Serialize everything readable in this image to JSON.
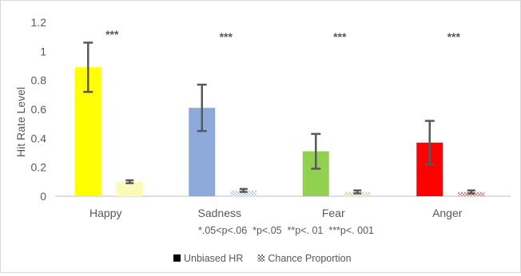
{
  "chart_data": {
    "type": "bar",
    "ylabel": "Hit Rate Level",
    "ylim": [
      0,
      1.2
    ],
    "yticks": [
      0,
      0.2,
      0.4,
      0.6,
      0.8,
      1,
      1.2
    ],
    "ytick_labels": [
      "0",
      "0.2",
      "0.4",
      "0.6",
      "0.8",
      "1",
      "1.2"
    ],
    "categories": [
      "Happy",
      "Sadness",
      "Fear",
      "Anger"
    ],
    "series": [
      {
        "name": "Unbiased HR",
        "values": [
          0.89,
          0.61,
          0.31,
          0.37
        ],
        "error": [
          0.17,
          0.16,
          0.12,
          0.15
        ]
      },
      {
        "name": "Chance Proportion",
        "values": [
          0.1,
          0.04,
          0.03,
          0.03
        ],
        "error": [
          0.01,
          0.01,
          0.01,
          0.01
        ]
      }
    ],
    "significance": [
      "***",
      "***",
      "***",
      "***"
    ],
    "note": "*.05<p<.06  *p<.05  **p<. 01  ***p<. 001",
    "legend_position": "bottom",
    "grid": false
  },
  "colors": {
    "bars": [
      "#ffff00",
      "#8eaadb",
      "#92d050",
      "#ff0000"
    ],
    "error_bar": "#595959",
    "axis": "#bfbfbf"
  }
}
